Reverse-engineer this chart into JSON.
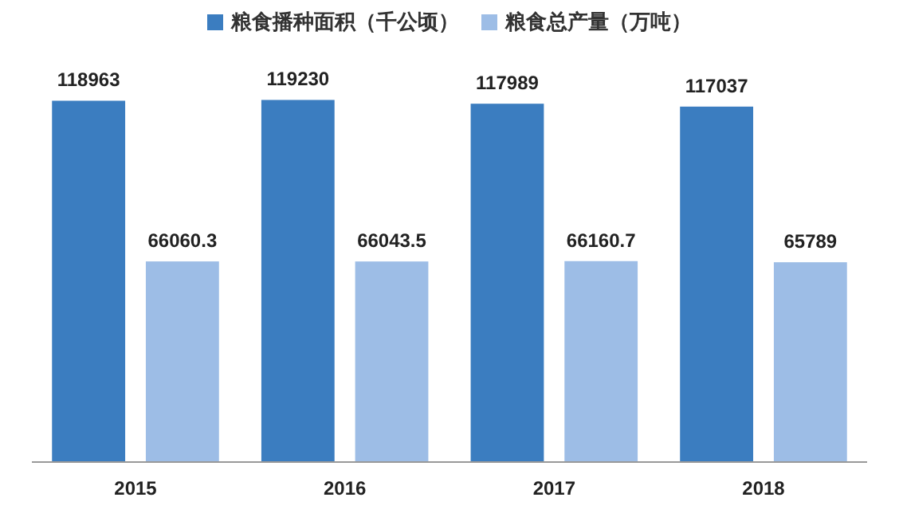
{
  "chart_data": {
    "type": "bar",
    "categories": [
      "2015",
      "2016",
      "2017",
      "2018"
    ],
    "series": [
      {
        "name": "粮食播种面积（千公顷）",
        "color": "#3b7dc0",
        "values": [
          118963,
          119230,
          117989,
          117037
        ]
      },
      {
        "name": "粮食总产量（万吨）",
        "color": "#9dbde6",
        "values": [
          66060.3,
          66043.5,
          66160.7,
          65789
        ]
      }
    ],
    "data_labels": true,
    "legend": "top",
    "grid": false
  }
}
